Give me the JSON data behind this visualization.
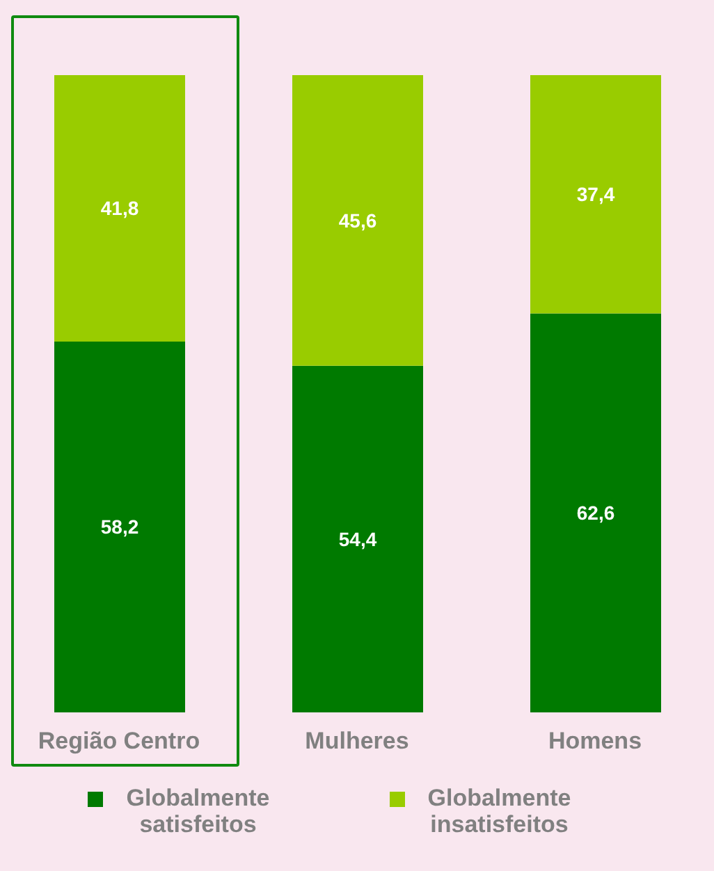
{
  "chart_data": {
    "type": "bar",
    "stacked": true,
    "legend": "bottom",
    "categories": [
      "Região Centro",
      "Mulheres",
      "Homens"
    ],
    "series": [
      {
        "name": "Globalmente satisfeitos",
        "color": "#007a00",
        "values": [
          58.2,
          54.4,
          62.6
        ],
        "value_labels": [
          "58,2",
          "54,4",
          "62,6"
        ]
      },
      {
        "name": "Globalmente insatisfeitos",
        "color": "#99cc00",
        "values": [
          41.8,
          45.6,
          37.4
        ],
        "value_labels": [
          "41,8",
          "45,6",
          "37,4"
        ]
      }
    ]
  }
}
